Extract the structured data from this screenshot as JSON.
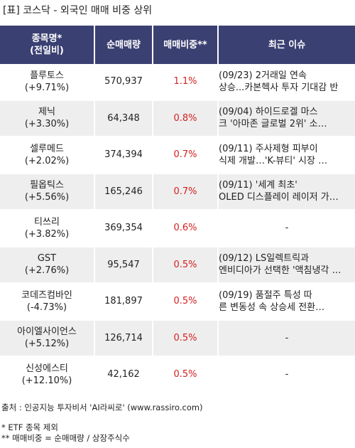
{
  "title": "[표] 코스닥 - 외국인 매매 비중 상위",
  "headers": {
    "name_line1": "종목명*",
    "name_line2": "(전일비)",
    "volume": "순매매량",
    "ratio": "매매비중**",
    "issue": "최근 이슈"
  },
  "rows": [
    {
      "name": "플루토스",
      "change": "(+9.71%)",
      "volume": "570,937",
      "ratio": "1.1%",
      "issue_line1": "(09/23) 2거래일 연속",
      "issue_line2": "상승...카본헥사 투자 기대감 반"
    },
    {
      "name": "제닉",
      "change": "(+3.30%)",
      "volume": "64,348",
      "ratio": "0.8%",
      "issue_line1": "(09/04) 하이드로겔 마스",
      "issue_line2": "크 '아마존 글로벌 2위' 소…"
    },
    {
      "name": "셀루메드",
      "change": "(+2.02%)",
      "volume": "374,394",
      "ratio": "0.7%",
      "issue_line1": "(09/11) 주사제형 피부이",
      "issue_line2": "식제 개발…'K-뷰티' 시장 …"
    },
    {
      "name": "필옵틱스",
      "change": "(+5.56%)",
      "volume": "165,246",
      "ratio": "0.7%",
      "issue_line1": "(09/11) '세계 최초'",
      "issue_line2": "OLED 디스플레이 레이저 가…"
    },
    {
      "name": "티쓰리",
      "change": "(+3.82%)",
      "volume": "369,354",
      "ratio": "0.6%",
      "issue_line1": "-",
      "issue_line2": ""
    },
    {
      "name": "GST",
      "change": "(+2.76%)",
      "volume": "95,547",
      "ratio": "0.5%",
      "issue_line1": "(09/12) LS일렉트릭과",
      "issue_line2": "엔비디아가 선택한 '액침냉각 …"
    },
    {
      "name": "코데즈컴바인",
      "change": "(-4.73%)",
      "volume": "181,897",
      "ratio": "0.5%",
      "issue_line1": "(09/19) 품절주 특성 따",
      "issue_line2": "른 변동성 속 상승세 전환…"
    },
    {
      "name": "아이엘사이언스",
      "change": "(+5.12%)",
      "volume": "126,714",
      "ratio": "0.5%",
      "issue_line1": "-",
      "issue_line2": ""
    },
    {
      "name": "신성에스티",
      "change": "(+12.10%)",
      "volume": "42,162",
      "ratio": "0.5%",
      "issue_line1": "-",
      "issue_line2": ""
    }
  ],
  "footer": {
    "source": "출처 : 인공지능 투자비서 'AI라씨로' (www.rassiro.com)",
    "note1": "* ETF 종목 제외",
    "note2": "** 매매비중 = 순매매량 / 상장주식수"
  }
}
